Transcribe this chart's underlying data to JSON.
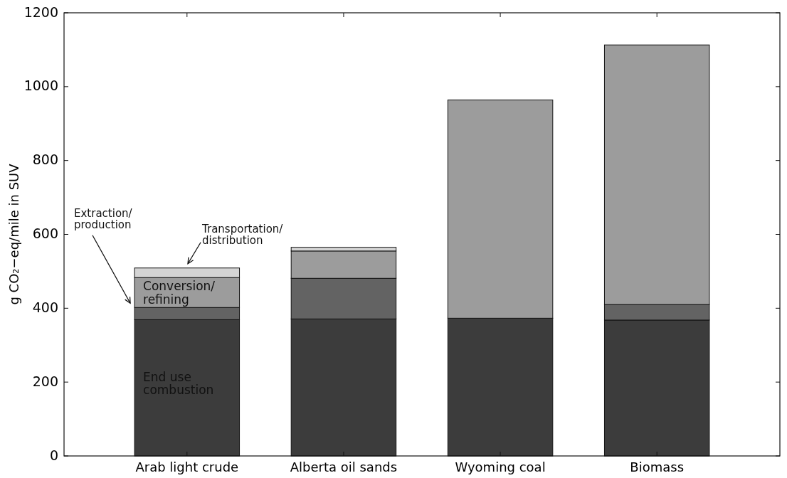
{
  "chart_data": {
    "type": "bar",
    "stacked": true,
    "ylabel": "g CO₂−eq/mile in SUV",
    "categories": [
      "Arab light crude",
      "Alberta oil sands",
      "Wyoming coal",
      "Biomass"
    ],
    "ylim": [
      0,
      1200
    ],
    "yticks": [
      0,
      200,
      400,
      600,
      800,
      1000,
      1200
    ],
    "series": [
      {
        "name": "End use combustion",
        "color": "#3c3c3c",
        "values": [
          369,
          371,
          373,
          368
        ]
      },
      {
        "name": "Extraction/ production",
        "color": "#636363",
        "values": [
          33,
          110,
          0,
          42
        ]
      },
      {
        "name": "Conversion/ refining",
        "color": "#9c9c9c",
        "values": [
          81,
          74,
          591,
          703
        ]
      },
      {
        "name": "Transportation/ distribution",
        "color": "#d4d4d4",
        "values": [
          26,
          10,
          0,
          0
        ]
      }
    ]
  }
}
